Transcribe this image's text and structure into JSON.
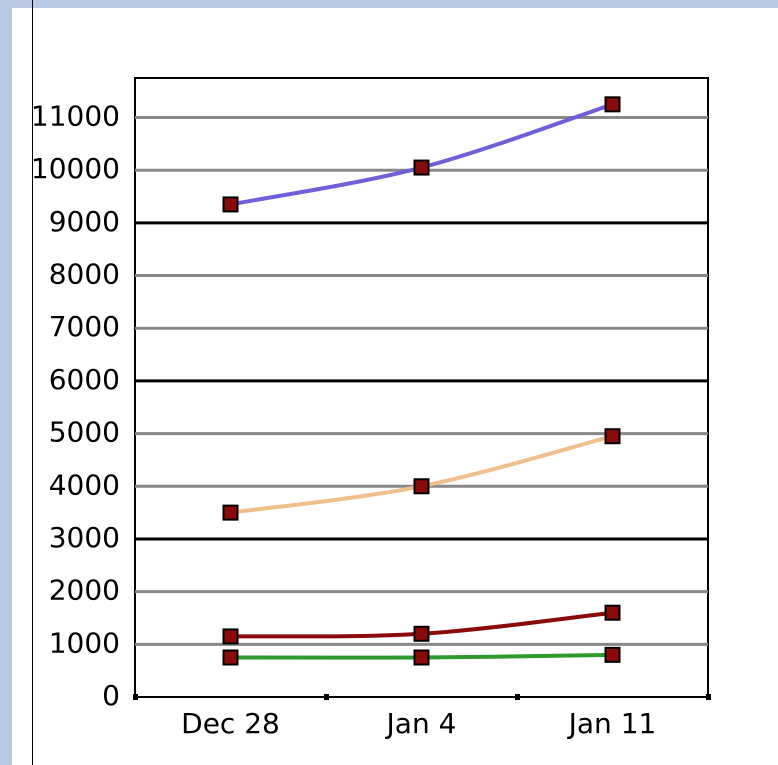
{
  "chart_data": {
    "type": "line",
    "categories": [
      "Dec 28",
      "Jan 4",
      "Jan 11"
    ],
    "series": [
      {
        "color": "#6f5fd9",
        "values": [
          9350,
          10050,
          11250
        ]
      },
      {
        "color": "#f0c08c",
        "values": [
          3500,
          4000,
          4950
        ]
      },
      {
        "color": "#8b0a0a",
        "values": [
          1150,
          1200,
          1600
        ]
      },
      {
        "color": "#2e9a2e",
        "values": [
          750,
          750,
          800
        ]
      }
    ],
    "ylim": [
      0,
      11750
    ],
    "yticks": [
      0,
      1000,
      2000,
      3000,
      4000,
      5000,
      6000,
      7000,
      8000,
      9000,
      10000,
      11000
    ],
    "grid": true,
    "smooth": true
  }
}
